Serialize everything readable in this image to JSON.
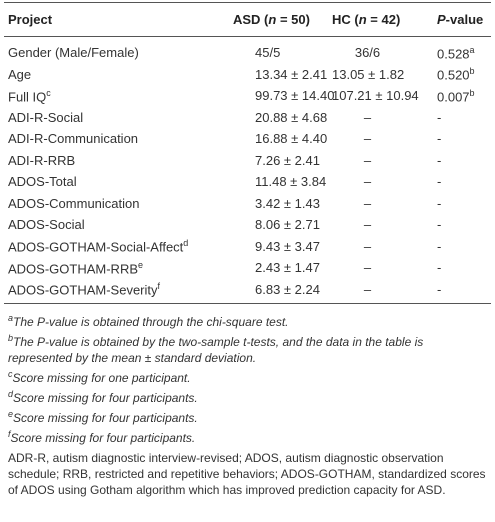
{
  "table": {
    "header": [
      {
        "text": "Project"
      },
      {
        "pre": "ASD (",
        "it": "n",
        "post": " = 50)"
      },
      {
        "pre": "HC (",
        "it": "n",
        "post": " = 42)"
      },
      {
        "pre": "",
        "it": "P",
        "post": "-value"
      }
    ],
    "rows": [
      [
        {
          "text": "Gender (Male/Female)"
        },
        {
          "text": "45/5"
        },
        {
          "text": "36/6"
        },
        {
          "text": "0.528",
          "sup": "a"
        }
      ],
      [
        {
          "text": "Age"
        },
        {
          "text": "13.34 ± 2.41"
        },
        {
          "text": "13.05 ± 1.82"
        },
        {
          "text": "0.520",
          "sup": "b"
        }
      ],
      [
        {
          "text": "Full IQ",
          "sup": "c"
        },
        {
          "text": "99.73 ± 14.40"
        },
        {
          "text": "107.21 ± 10.94"
        },
        {
          "text": "0.007",
          "sup": "b"
        }
      ],
      [
        {
          "text": "ADI-R-Social"
        },
        {
          "text": "20.88 ± 4.68"
        },
        {
          "text": "–"
        },
        {
          "text": "-"
        }
      ],
      [
        {
          "text": "ADI-R-Communication"
        },
        {
          "text": "16.88 ± 4.40"
        },
        {
          "text": "–"
        },
        {
          "text": "-"
        }
      ],
      [
        {
          "text": "ADI-R-RRB"
        },
        {
          "text": "7.26 ± 2.41"
        },
        {
          "text": "–"
        },
        {
          "text": "-"
        }
      ],
      [
        {
          "text": "ADOS-Total"
        },
        {
          "text": "11.48 ± 3.84"
        },
        {
          "text": "–"
        },
        {
          "text": "-"
        }
      ],
      [
        {
          "text": "ADOS-Communication"
        },
        {
          "text": "3.42 ± 1.43"
        },
        {
          "text": "–"
        },
        {
          "text": "-"
        }
      ],
      [
        {
          "text": "ADOS-Social"
        },
        {
          "text": "8.06 ± 2.71"
        },
        {
          "text": "–"
        },
        {
          "text": "-"
        }
      ],
      [
        {
          "text": "ADOS-GOTHAM-Social-Affect",
          "sup": "d"
        },
        {
          "text": "9.43 ± 3.47"
        },
        {
          "text": "–"
        },
        {
          "text": "-"
        }
      ],
      [
        {
          "text": "ADOS-GOTHAM-RRB",
          "sup": "e"
        },
        {
          "text": "2.43 ± 1.47"
        },
        {
          "text": "–"
        },
        {
          "text": "-"
        }
      ],
      [
        {
          "text": "ADOS-GOTHAM-Severity",
          "sup": "f"
        },
        {
          "text": "6.83 ± 2.24"
        },
        {
          "text": "–"
        },
        {
          "text": "-"
        }
      ]
    ]
  },
  "footnotes": [
    {
      "mark": "a",
      "text": "The P-value is obtained through the chi-square test."
    },
    {
      "mark": "b",
      "text": "The P-value is obtained by the two-sample t-tests, and the data in the table is represented by the mean ± standard deviation."
    },
    {
      "mark": "c",
      "text": "Score missing for one participant."
    },
    {
      "mark": "d",
      "text": "Score missing for four participants."
    },
    {
      "mark": "e",
      "text": "Score missing for four participants."
    },
    {
      "mark": "f",
      "text": "Score missing for four participants."
    }
  ],
  "abbreviations": "ADR-R, autism diagnostic interview-revised; ADOS, autism diagnostic observation schedule; RRB, restricted and repetitive behaviors; ADOS-GOTHAM, standardized scores of ADOS using Gotham algorithm which has improved prediction capacity for ASD."
}
